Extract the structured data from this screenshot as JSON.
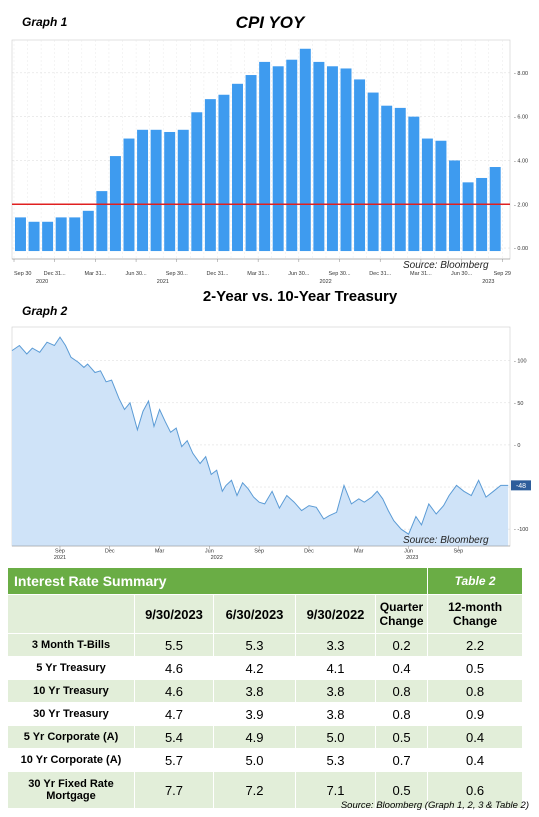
{
  "graph1": {
    "label": "Graph 1",
    "source": "Source: Bloomberg",
    "chart_data": {
      "type": "bar",
      "title": "CPI YOY",
      "ylim": [
        -0.5,
        9.5
      ],
      "yticks": [
        "0.00",
        "2.00",
        "4.00",
        "6.00",
        "8.00"
      ],
      "ytick_values": [
        0,
        2,
        4,
        6,
        8
      ],
      "reference_line": 2.0,
      "values": [
        1.4,
        1.2,
        1.2,
        1.4,
        1.4,
        1.7,
        2.6,
        4.2,
        5.0,
        5.4,
        5.4,
        5.3,
        5.4,
        6.2,
        6.8,
        7.0,
        7.5,
        7.9,
        8.5,
        8.3,
        8.6,
        9.1,
        8.5,
        8.3,
        8.2,
        7.7,
        7.1,
        6.5,
        6.4,
        6.0,
        5.0,
        4.9,
        4.0,
        3.0,
        3.2,
        3.7
      ],
      "xticks": [
        {
          "label": "Sep 30",
          "index": 0
        },
        {
          "label": "Dec 31...",
          "index": 3
        },
        {
          "label": "Mar 31...",
          "index": 6
        },
        {
          "label": "Jun 30...",
          "index": 9
        },
        {
          "label": "Sep 30...",
          "index": 12
        },
        {
          "label": "Dec 31...",
          "index": 15
        },
        {
          "label": "Mar 31...",
          "index": 18
        },
        {
          "label": "Jun 30...",
          "index": 21
        },
        {
          "label": "Sep 30...",
          "index": 24
        },
        {
          "label": "Dec 31...",
          "index": 27
        },
        {
          "label": "Mar 31...",
          "index": 30
        },
        {
          "label": "Jun 30...",
          "index": 33
        },
        {
          "label": "Sep 29",
          "index": 36
        }
      ],
      "years": [
        {
          "label": "2020",
          "index": 0.6
        },
        {
          "label": "2021",
          "index": 9.5
        },
        {
          "label": "2022",
          "index": 21.5
        },
        {
          "label": "2023",
          "index": 33.5
        }
      ]
    }
  },
  "graph2": {
    "label": "Graph 2",
    "source": "Source: Bloomberg",
    "last_value_label": "-48",
    "chart_data": {
      "type": "area",
      "title": "2-Year vs. 10-Year Treasury",
      "ylim": [
        -120,
        140
      ],
      "yticks": [
        "100",
        "50",
        "0",
        "-50",
        "-100"
      ],
      "ytick_values": [
        100,
        50,
        0,
        -50,
        -100
      ],
      "xlim": [
        0,
        27
      ],
      "x": [
        0,
        0.4,
        0.8,
        1.1,
        1.5,
        1.9,
        2.3,
        2.6,
        2.9,
        3.2,
        3.6,
        3.9,
        4.1,
        4.5,
        4.8,
        5.1,
        5.4,
        5.8,
        6.1,
        6.4,
        6.8,
        7.1,
        7.4,
        7.7,
        8.0,
        8.3,
        8.6,
        8.9,
        9.2,
        9.5,
        9.8,
        10.2,
        10.5,
        10.8,
        11.1,
        11.4,
        11.6,
        11.9,
        12.2,
        12.5,
        12.8,
        13.1,
        13.4,
        13.7,
        14.1,
        14.5,
        14.9,
        15.3,
        15.7,
        16.1,
        16.5,
        16.9,
        17.2,
        17.6,
        18.0,
        18.4,
        18.8,
        19.1,
        19.5,
        19.8,
        20.1,
        20.4,
        20.7,
        21.1,
        21.5,
        21.9,
        22.2,
        22.6,
        23.0,
        23.4,
        23.7,
        24.1,
        24.5,
        24.9,
        25.3,
        25.7,
        26.1,
        26.5,
        26.9
      ],
      "values": [
        112,
        118,
        108,
        115,
        110,
        122,
        118,
        128,
        118,
        104,
        98,
        92,
        96,
        86,
        88,
        75,
        77,
        55,
        42,
        50,
        18,
        40,
        52,
        22,
        42,
        28,
        15,
        20,
        -2,
        5,
        -10,
        -22,
        -14,
        -35,
        -30,
        -55,
        -48,
        -42,
        -60,
        -45,
        -52,
        -62,
        -68,
        -70,
        -55,
        -75,
        -60,
        -68,
        -78,
        -72,
        -74,
        -88,
        -84,
        -80,
        -48,
        -70,
        -64,
        -68,
        -62,
        -55,
        -64,
        -78,
        -90,
        -100,
        -106,
        -85,
        -95,
        -70,
        -82,
        -72,
        -60,
        -48,
        -55,
        -60,
        -42,
        -62,
        -55,
        -48,
        -48
      ],
      "xticks": [
        {
          "label": "Sep",
          "x": 2.6
        },
        {
          "label": "Dec",
          "x": 5.3
        },
        {
          "label": "Mar",
          "x": 8.0
        },
        {
          "label": "Jun",
          "x": 10.7
        },
        {
          "label": "Sep",
          "x": 13.4
        },
        {
          "label": "Dec",
          "x": 16.1
        },
        {
          "label": "Mar",
          "x": 18.8
        },
        {
          "label": "Jun",
          "x": 21.5
        },
        {
          "label": "Sep",
          "x": 24.2
        }
      ],
      "years": [
        {
          "label": "2021",
          "x": 2.6
        },
        {
          "label": "2022",
          "x": 11.1
        },
        {
          "label": "2023",
          "x": 21.7
        }
      ]
    }
  },
  "table": {
    "title": "Interest Rate Summary",
    "tag": "Table 2",
    "columns": [
      "",
      "9/30/2023",
      "6/30/2023",
      "9/30/2022",
      "Quarter Change",
      "12-month Change"
    ],
    "rows": [
      {
        "label": "3 Month T-Bills",
        "values": [
          "5.5",
          "5.3",
          "3.3",
          "0.2",
          "2.2"
        ]
      },
      {
        "label": "5 Yr Treasury",
        "values": [
          "4.6",
          "4.2",
          "4.1",
          "0.4",
          "0.5"
        ]
      },
      {
        "label": "10 Yr Treasury",
        "values": [
          "4.6",
          "3.8",
          "3.8",
          "0.8",
          "0.8"
        ]
      },
      {
        "label": "30 Yr Treasury",
        "values": [
          "4.7",
          "3.9",
          "3.8",
          "0.8",
          "0.9"
        ]
      },
      {
        "label": "5 Yr Corporate (A)",
        "values": [
          "5.4",
          "4.9",
          "5.0",
          "0.5",
          "0.4"
        ]
      },
      {
        "label": "10 Yr Corporate (A)",
        "values": [
          "5.7",
          "5.0",
          "5.3",
          "0.7",
          "0.4"
        ]
      },
      {
        "label": "30 Yr Fixed Rate Mortgage",
        "values": [
          "7.7",
          "7.2",
          "7.1",
          "0.5",
          "0.6"
        ]
      }
    ],
    "source": "Source: Bloomberg (Graph 1, 2, 3 & Table 2)"
  }
}
